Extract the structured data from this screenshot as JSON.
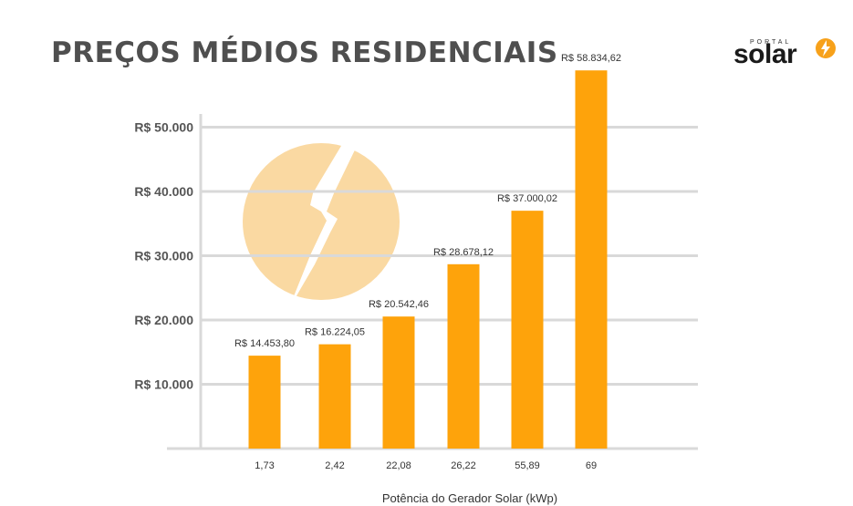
{
  "title": "PREÇOS MÉDIOS RESIDENCIAIS",
  "brand": {
    "small": "PORTAL",
    "name": "solar",
    "accent": "#f7a11a"
  },
  "chart_data": {
    "type": "bar",
    "categories": [
      "1,73",
      "2,42",
      "22,08",
      "26,22",
      "55,89",
      "69"
    ],
    "values": [
      14453.8,
      16224.05,
      20542.46,
      28678.12,
      37000.02,
      58834.62
    ],
    "value_labels": [
      "R$ 14.453,80",
      "R$ 16.224,05",
      "R$ 20.542,46",
      "R$ 28.678,12",
      "R$ 37.000,02",
      "R$ 58.834,62"
    ],
    "xlabel": "Potência do Gerador Solar (kWp)",
    "ylabel": "",
    "yticks": [
      10000,
      20000,
      30000,
      40000,
      50000
    ],
    "ytick_labels": [
      "R$ 10.000",
      "R$ 20.000",
      "R$ 30.000",
      "R$ 40.000",
      "R$ 50.000"
    ],
    "grid": true,
    "colors": {
      "bar": "#fea30b",
      "grid": "#d9d9d9",
      "watermark": "#fad9a2"
    }
  }
}
